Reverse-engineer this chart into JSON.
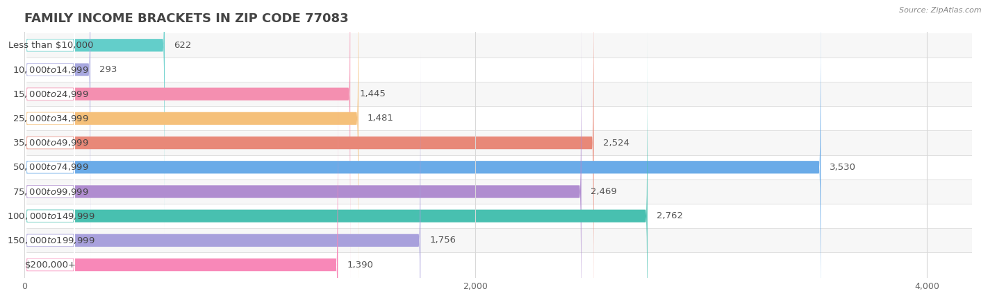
{
  "title": "FAMILY INCOME BRACKETS IN ZIP CODE 77083",
  "source": "Source: ZipAtlas.com",
  "categories": [
    "Less than $10,000",
    "$10,000 to $14,999",
    "$15,000 to $24,999",
    "$25,000 to $34,999",
    "$35,000 to $49,999",
    "$50,000 to $74,999",
    "$75,000 to $99,999",
    "$100,000 to $149,999",
    "$150,000 to $199,999",
    "$200,000+"
  ],
  "values": [
    622,
    293,
    1445,
    1481,
    2524,
    3530,
    2469,
    2762,
    1756,
    1390
  ],
  "bar_colors": [
    "#63ceca",
    "#a9a9e0",
    "#f48fb0",
    "#f5c07a",
    "#e88878",
    "#6aabe8",
    "#b08dd0",
    "#48c0b0",
    "#a8a0dc",
    "#f888b8"
  ],
  "xlim_max": 4200,
  "background_color": "#ffffff",
  "row_sep_color": "#e0e0e0",
  "title_fontsize": 13,
  "label_fontsize": 9.5,
  "value_fontsize": 9.5
}
